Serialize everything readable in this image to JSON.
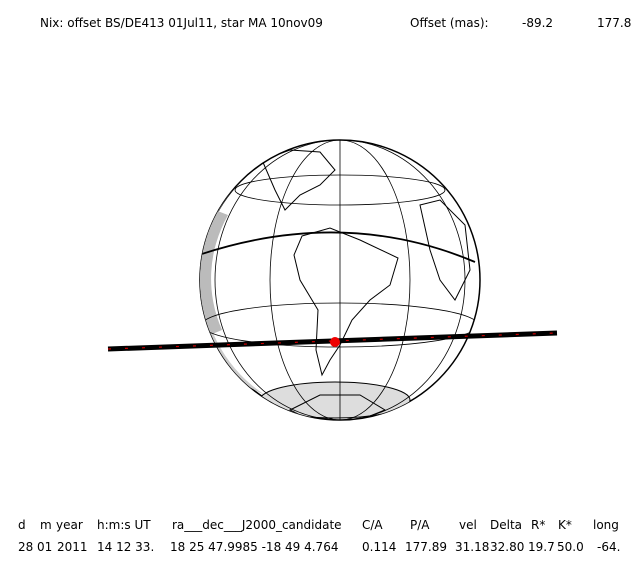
{
  "header": {
    "title": "Nix: offset BS/DE413 01Jul11, star MA 10nov09",
    "offset_label": "Offset (mas):",
    "offset_values": [
      "-89.2",
      "177.8"
    ]
  },
  "table": {
    "columns": [
      {
        "header": "d",
        "value": "28"
      },
      {
        "header": "m",
        "value": "01"
      },
      {
        "header": "year",
        "value": "2011"
      },
      {
        "header": "h:m:s UT",
        "value": "14 12 33."
      },
      {
        "header": "ra___dec___J2000_candidate",
        "value": "18 25 47.9985 -18 49   4.764"
      },
      {
        "header": "C/A",
        "value": "0.114"
      },
      {
        "header": "P/A",
        "value": "177.89"
      },
      {
        "header": "vel",
        "value": "31.18"
      },
      {
        "header": "Delta",
        "value": "32.80"
      },
      {
        "header": "R*",
        "value": "19.7"
      },
      {
        "header": "K*",
        "value": "50.0"
      },
      {
        "header": "long",
        "value": "-64."
      }
    ]
  }
}
